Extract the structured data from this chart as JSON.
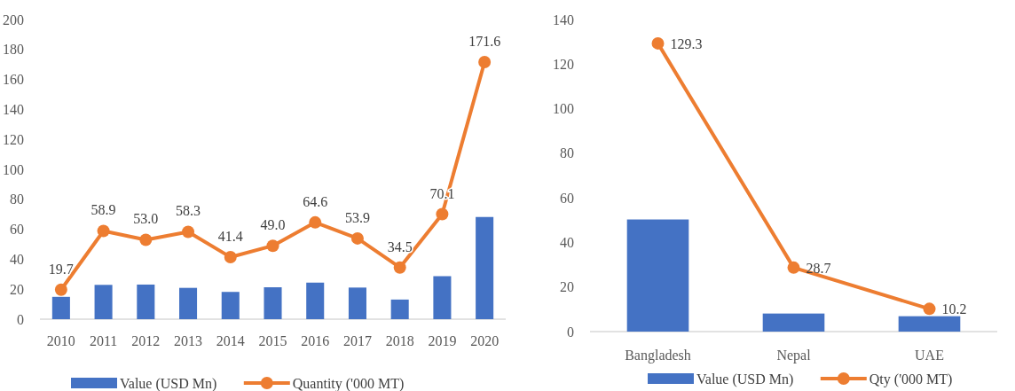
{
  "chart_data": [
    {
      "type": "bar",
      "categories": [
        "2010",
        "2011",
        "2012",
        "2013",
        "2014",
        "2015",
        "2016",
        "2017",
        "2018",
        "2019",
        "2020"
      ],
      "ylim": [
        0,
        200
      ],
      "yticks": [
        0,
        20,
        40,
        60,
        80,
        100,
        120,
        140,
        160,
        180,
        200
      ],
      "legend": "bottom",
      "grid": false,
      "series": [
        {
          "name": "Value (USD Mn)",
          "color": "#4472c4",
          "values": [
            14.9,
            22.9,
            23.1,
            20.9,
            18.2,
            21.3,
            24.4,
            21.1,
            13.1,
            28.7,
            68.2
          ]
        },
        {
          "name": "Quantity ('000 MT)",
          "type": "line",
          "color": "#ed7d31",
          "marker": "circle",
          "values": [
            19.7,
            58.9,
            53.0,
            58.3,
            41.4,
            49.0,
            64.6,
            53.9,
            34.5,
            70.1,
            171.6
          ],
          "value_labels": [
            "19.7",
            "58.9",
            "53.0",
            "58.3",
            "41.4",
            "49.0",
            "64.6",
            "53.9",
            "34.5",
            "70.1",
            "171.6"
          ]
        }
      ]
    },
    {
      "type": "bar",
      "categories": [
        "Bangladesh",
        "Nepal",
        "UAE"
      ],
      "ylim": [
        0,
        140
      ],
      "yticks": [
        0,
        20,
        40,
        60,
        80,
        100,
        120,
        140
      ],
      "legend": "bottom",
      "grid": false,
      "series": [
        {
          "name": "Value (USD Mn)",
          "color": "#4472c4",
          "values": [
            50.3,
            8.1,
            6.9
          ]
        },
        {
          "name": "Qty ('000 MT)",
          "type": "line",
          "color": "#ed7d31",
          "marker": "circle",
          "values": [
            129.3,
            28.7,
            10.2
          ],
          "value_labels": [
            "129.3",
            "28.7",
            "10.2"
          ]
        }
      ]
    }
  ]
}
